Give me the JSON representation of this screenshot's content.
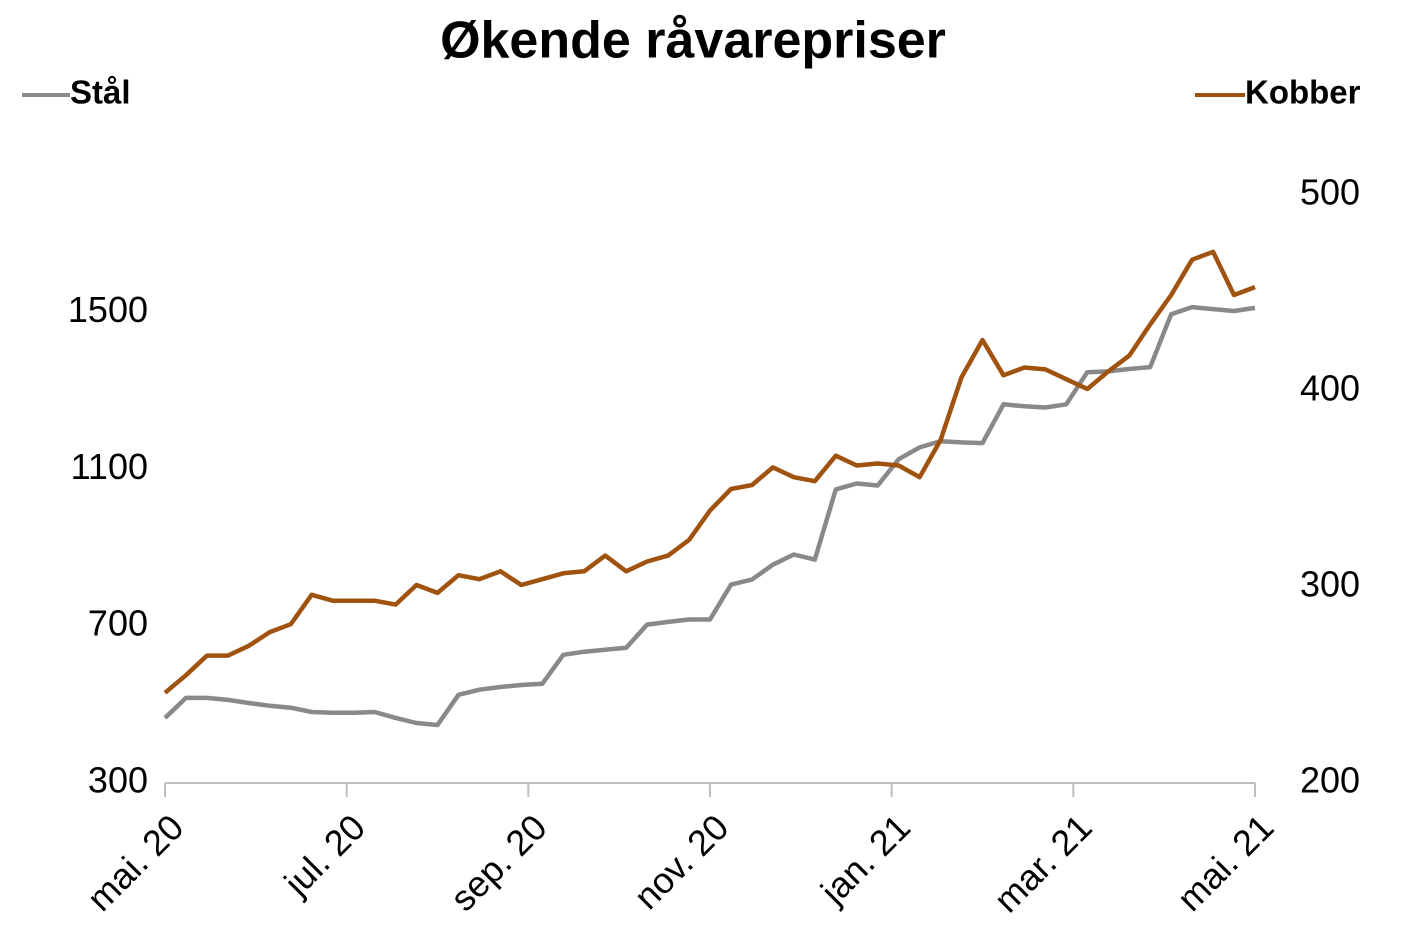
{
  "chart_data": {
    "type": "line",
    "title": "Økende råvarepriser",
    "xlim": [
      "2020-05",
      "2021-05"
    ],
    "xticks": [
      {
        "value": "2020-05",
        "label": "mai. 20"
      },
      {
        "value": "2020-07",
        "label": "jul. 20"
      },
      {
        "value": "2020-09",
        "label": "sep. 20"
      },
      {
        "value": "2020-11",
        "label": "nov. 20"
      },
      {
        "value": "2021-01",
        "label": "jan. 21"
      },
      {
        "value": "2021-03",
        "label": "mar. 21"
      },
      {
        "value": "2021-05",
        "label": "mai. 21"
      }
    ],
    "ylim": [
      300,
      1800
    ],
    "yticks": [
      300,
      700,
      1100,
      1500
    ],
    "y2lim": [
      200,
      500
    ],
    "y2ticks": [
      200,
      300,
      400,
      500
    ],
    "series": [
      {
        "name": "Stål",
        "color": "#898989",
        "axis": "y",
        "values": [
          466,
          517,
          517,
          512,
          504,
          497,
          492,
          481,
          479,
          479,
          481,
          466,
          453,
          448,
          525,
          538,
          545,
          550,
          553,
          627,
          635,
          640,
          645,
          704,
          711,
          717,
          717,
          806,
          819,
          857,
          883,
          870,
          1049,
          1064,
          1059,
          1126,
          1156,
          1172,
          1169,
          1167,
          1266,
          1261,
          1258,
          1266,
          1348,
          1350,
          1356,
          1361,
          1496,
          1514,
          1509,
          1504,
          1512
        ]
      },
      {
        "name": "Kobber",
        "color": "#a0520f",
        "axis": "y2",
        "values": [
          246,
          255,
          265,
          265,
          270,
          277,
          281,
          296,
          293,
          293,
          293,
          291,
          301,
          297,
          306,
          304,
          308,
          301,
          304,
          307,
          308,
          316,
          308,
          313,
          316,
          324,
          339,
          350,
          352,
          361,
          356,
          354,
          367,
          362,
          363,
          362,
          356,
          375,
          407,
          426,
          408,
          412,
          411,
          406,
          401,
          410,
          418,
          434,
          449,
          467,
          471,
          449,
          453
        ]
      }
    ]
  }
}
